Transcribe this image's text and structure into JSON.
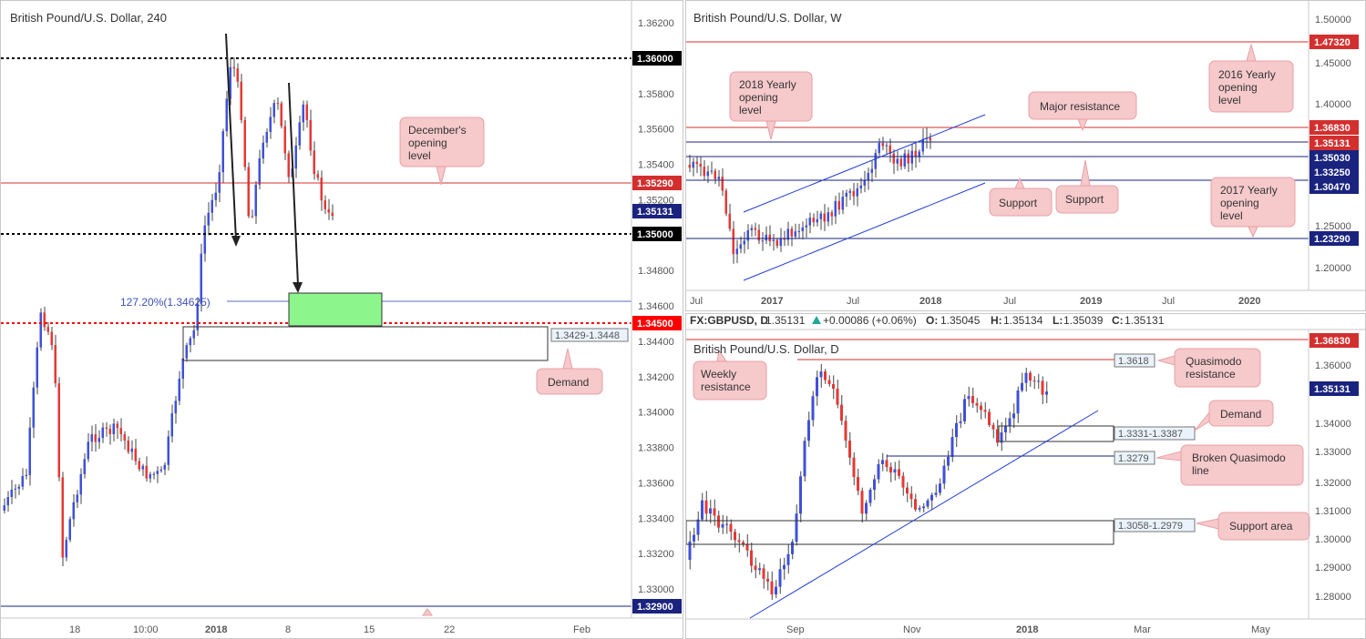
{
  "chart_data": [
    {
      "id": "h4",
      "type": "candlestick",
      "title": "British Pound/U.S. Dollar, 240",
      "ylim": [
        1.3276,
        1.3636
      ],
      "y_ticks": [
        "1.36200",
        "1.35800",
        "1.35600",
        "1.35400",
        "1.35200",
        "1.34800",
        "1.34600",
        "1.34400",
        "1.34200",
        "1.34000",
        "1.33800",
        "1.33600",
        "1.33400",
        "1.33200",
        "1.33000"
      ],
      "x_ticks": [
        "18",
        "10:00",
        "2018",
        "8",
        "15",
        "22",
        "Feb"
      ],
      "last_price": "1.35131",
      "levels": [
        {
          "name": "1.36000 level",
          "label": "1.36000",
          "value": 1.36,
          "color": "#000000",
          "style": "dotted"
        },
        {
          "name": "december-opening-level",
          "label": "1.35290",
          "value": 1.3529,
          "color": "#d32f2f",
          "style": "solid"
        },
        {
          "name": "1.35000 level",
          "label": "1.35000",
          "value": 1.35,
          "color": "#000000",
          "style": "dotted"
        },
        {
          "name": "1.34500 level",
          "label": "1.34500",
          "value": 1.345,
          "color": "#ff0000",
          "style": "dotted"
        },
        {
          "name": "2017 yearly opening",
          "label": "1.32900",
          "value": 1.329,
          "color": "#1a237e",
          "style": "solid"
        }
      ],
      "fib_label": "127.20%(1.34625)",
      "fib_value": 1.34625,
      "zones": [
        {
          "name": "green-target-zone",
          "from": 1.345,
          "to": 1.3467,
          "color": "#7cfc7c"
        },
        {
          "name": "demand-zone",
          "label": "1.3429-1.3448",
          "from": 1.3429,
          "to": 1.3448
        }
      ],
      "annotations": [
        "December's opening level",
        "Demand"
      ]
    },
    {
      "id": "weekly",
      "type": "candlestick",
      "title": "British Pound/U.S. Dollar, W",
      "ylim": [
        1.175,
        1.51
      ],
      "y_ticks": [
        "1.50000",
        "1.45000",
        "1.40000",
        "1.25000",
        "1.20000"
      ],
      "x_ticks": [
        "Jul",
        "2017",
        "Jul",
        "2018",
        "Jul",
        "2019",
        "Jul",
        "2020"
      ],
      "levels": [
        {
          "label": "1.47320",
          "value": 1.4732,
          "color": "#d32f2f"
        },
        {
          "label": "1.36830",
          "value": 1.3683,
          "color": "#d32f2f"
        },
        {
          "label": "1.35131",
          "value": 1.35131,
          "color": "#1a237e"
        },
        {
          "label": "1.35030",
          "value": 1.3503,
          "color": "#1a237e"
        },
        {
          "label": "1.33250",
          "value": 1.3325,
          "color": "#1a237e"
        },
        {
          "label": "1.30470",
          "value": 1.3047,
          "color": "#1a237e"
        },
        {
          "label": "1.23290",
          "value": 1.2329,
          "color": "#1a237e"
        }
      ],
      "annotations": [
        "2018 Yearly opening level",
        "Major resistance",
        "2016 Yearly opening level",
        "Support",
        "Support",
        "2017 Yearly opening level"
      ]
    },
    {
      "id": "daily",
      "type": "candlestick",
      "title": "British Pound/U.S. Dollar, D",
      "ylim": [
        1.2725,
        1.3685
      ],
      "y_ticks": [
        "1.36000",
        "1.34000",
        "1.33000",
        "1.32000",
        "1.31000",
        "1.30000",
        "1.29000",
        "1.28000"
      ],
      "x_ticks": [
        "Sep",
        "Nov",
        "2018",
        "Mar",
        "May"
      ],
      "infobar": {
        "symbol": "FX:GBPUSD, D",
        "last": "1.35131",
        "change": "+0.00086 (+0.06%)",
        "open_label": "O:",
        "open": "1.35045",
        "high_label": "H:",
        "high": "1.35134",
        "low_label": "L:",
        "low": "1.35039",
        "close_label": "C:",
        "close": "1.35131"
      },
      "levels": [
        {
          "label": "1.36830",
          "value": 1.3683,
          "color": "#d32f2f"
        },
        {
          "label": "1.35131",
          "value": 1.35131,
          "color": "#1a237e"
        }
      ],
      "boxes": [
        {
          "label": "1.3618",
          "value": 1.3618
        },
        {
          "label": "1.3331-1.3387",
          "from": 1.3331,
          "to": 1.3387
        },
        {
          "label": "1.3279",
          "value": 1.3279
        },
        {
          "label": "1.3058-1.2979",
          "from": 1.2979,
          "to": 1.3058
        }
      ],
      "annotations": [
        "Weekly resistance",
        "Quasimodo resistance",
        "Demand",
        "Broken Quasimodo line",
        "Support area"
      ]
    }
  ],
  "colors": {
    "bull": "#3f51d8",
    "bear": "#e53935",
    "level_red": "#d32f2f",
    "level_blue": "#1a237e",
    "note_bg": "#f6c9cb",
    "note_border": "#e8a0a4",
    "fib": "#5c6bc0",
    "zone_green": "#7cfc7c"
  }
}
